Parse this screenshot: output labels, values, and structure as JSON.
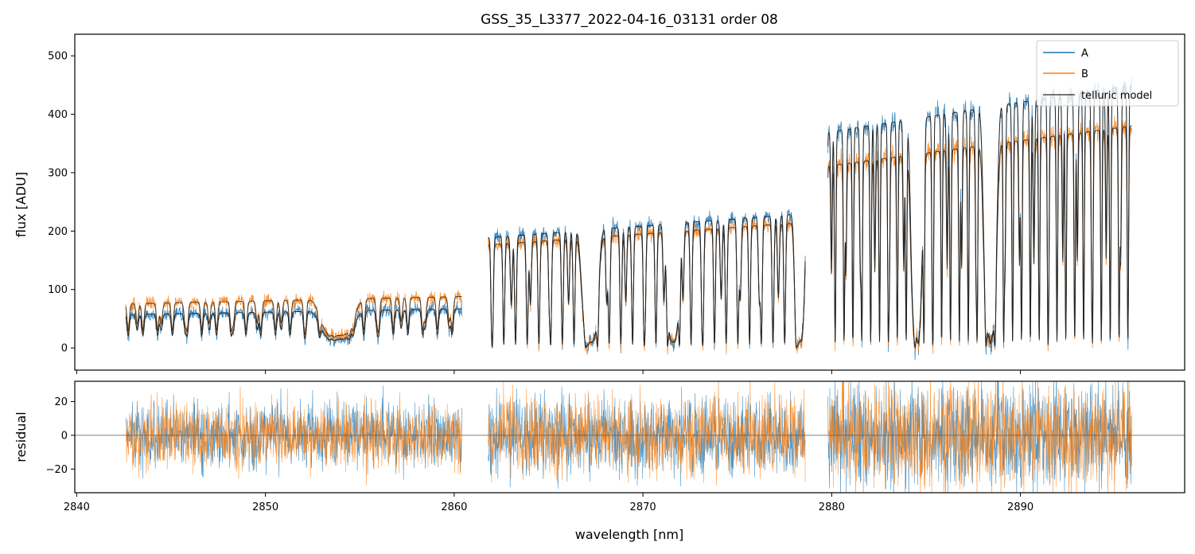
{
  "chart_data": {
    "type": "line",
    "title": "GSS_35_L3377_2022-04-16_03131  order 08",
    "xlabel": "wavelength [nm]",
    "top_panel": {
      "ylabel": "flux [ADU]",
      "xlim": [
        2839.9,
        2898.7
      ],
      "ylim": [
        -38,
        537
      ],
      "yticks": [
        0,
        100,
        200,
        300,
        400,
        500
      ],
      "ytick_labels": [
        "0",
        "100",
        "200",
        "300",
        "400",
        "500"
      ]
    },
    "bottom_panel": {
      "ylabel": "residual",
      "xlim": [
        2839.9,
        2898.7
      ],
      "ylim": [
        -34,
        32
      ],
      "yticks": [
        -20,
        0,
        20
      ],
      "ytick_labels": [
        "−20",
        "0",
        "20"
      ],
      "zero_line": 0
    },
    "xticks": [
      2840,
      2850,
      2860,
      2870,
      2880,
      2890
    ],
    "xtick_labels": [
      "2840",
      "2850",
      "2860",
      "2870",
      "2880",
      "2890"
    ],
    "segments": [
      {
        "start": 2842.6,
        "end": 2860.4,
        "baseA": 12,
        "ampA": 55,
        "baseB": 18,
        "ampB": 70,
        "resid_sigma": 10
      },
      {
        "start": 2861.8,
        "end": 2878.6,
        "baseA": 0,
        "ampA": 230,
        "baseB": 0,
        "ampB": 215,
        "resid_sigma": 12
      },
      {
        "start": 2879.8,
        "end": 2895.9,
        "baseA": 0,
        "ampA": 450,
        "baseB": 0,
        "ampB": 380,
        "resid_sigma": 16
      }
    ],
    "series": [
      {
        "name": "A",
        "color": "#1f77b4"
      },
      {
        "name": "B",
        "color": "#ff7f0e"
      },
      {
        "name": "telluric model",
        "color": "#262626"
      }
    ],
    "legend_position": "top-right"
  }
}
